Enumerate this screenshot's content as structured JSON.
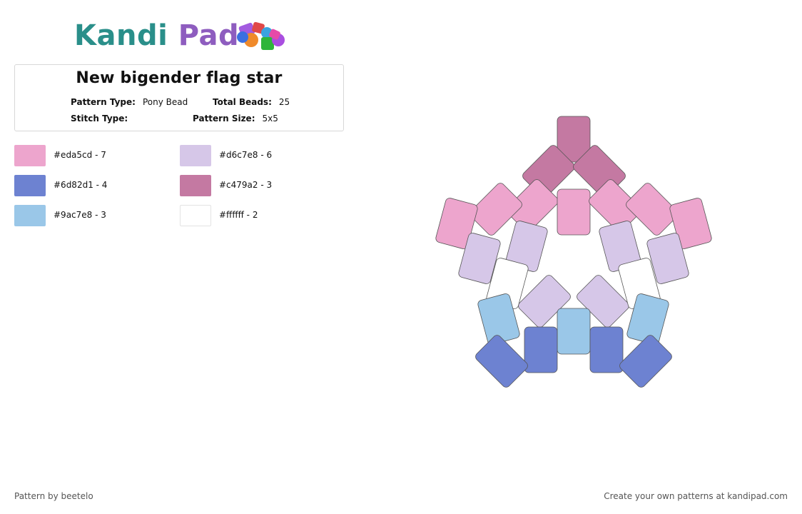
{
  "brand": {
    "name_part1": "Kandi",
    "name_part2": "Pad"
  },
  "pattern": {
    "title": "New bigender flag star",
    "pattern_type_label": "Pattern Type:",
    "pattern_type": "Pony Bead",
    "total_beads_label": "Total Beads:",
    "total_beads": "25",
    "stitch_type_label": "Stitch Type:",
    "stitch_type": "",
    "pattern_size_label": "Pattern Size:",
    "pattern_size": "5x5"
  },
  "colors": [
    {
      "hex": "#eda5cd",
      "label": "#eda5cd - 7"
    },
    {
      "hex": "#d6c7e8",
      "label": "#d6c7e8 - 6"
    },
    {
      "hex": "#6d82d1",
      "label": "#6d82d1 - 4"
    },
    {
      "hex": "#c479a2",
      "label": "#c479a2 - 3"
    },
    {
      "hex": "#9ac7e8",
      "label": "#9ac7e8 - 3"
    },
    {
      "hex": "#ffffff",
      "label": "#ffffff - 2"
    }
  ],
  "beads": [
    {
      "color": "#c479a2"
    },
    {
      "color": "#c479a2"
    },
    {
      "color": "#c479a2"
    },
    {
      "color": "#eda5cd"
    },
    {
      "color": "#eda5cd"
    },
    {
      "color": "#eda5cd"
    },
    {
      "color": "#eda5cd"
    },
    {
      "color": "#eda5cd"
    },
    {
      "color": "#eda5cd"
    },
    {
      "color": "#eda5cd"
    },
    {
      "color": "#d6c7e8"
    },
    {
      "color": "#d6c7e8"
    },
    {
      "color": "#d6c7e8"
    },
    {
      "color": "#d6c7e8"
    },
    {
      "color": "#d6c7e8"
    },
    {
      "color": "#d6c7e8"
    },
    {
      "color": "#ffffff"
    },
    {
      "color": "#ffffff"
    },
    {
      "color": "#9ac7e8"
    },
    {
      "color": "#9ac7e8"
    },
    {
      "color": "#9ac7e8"
    },
    {
      "color": "#6d82d1"
    },
    {
      "color": "#6d82d1"
    },
    {
      "color": "#6d82d1"
    },
    {
      "color": "#6d82d1"
    }
  ],
  "footer": {
    "credit": "Pattern by beetelo",
    "promo": "Create your own patterns at kandipad.com"
  }
}
